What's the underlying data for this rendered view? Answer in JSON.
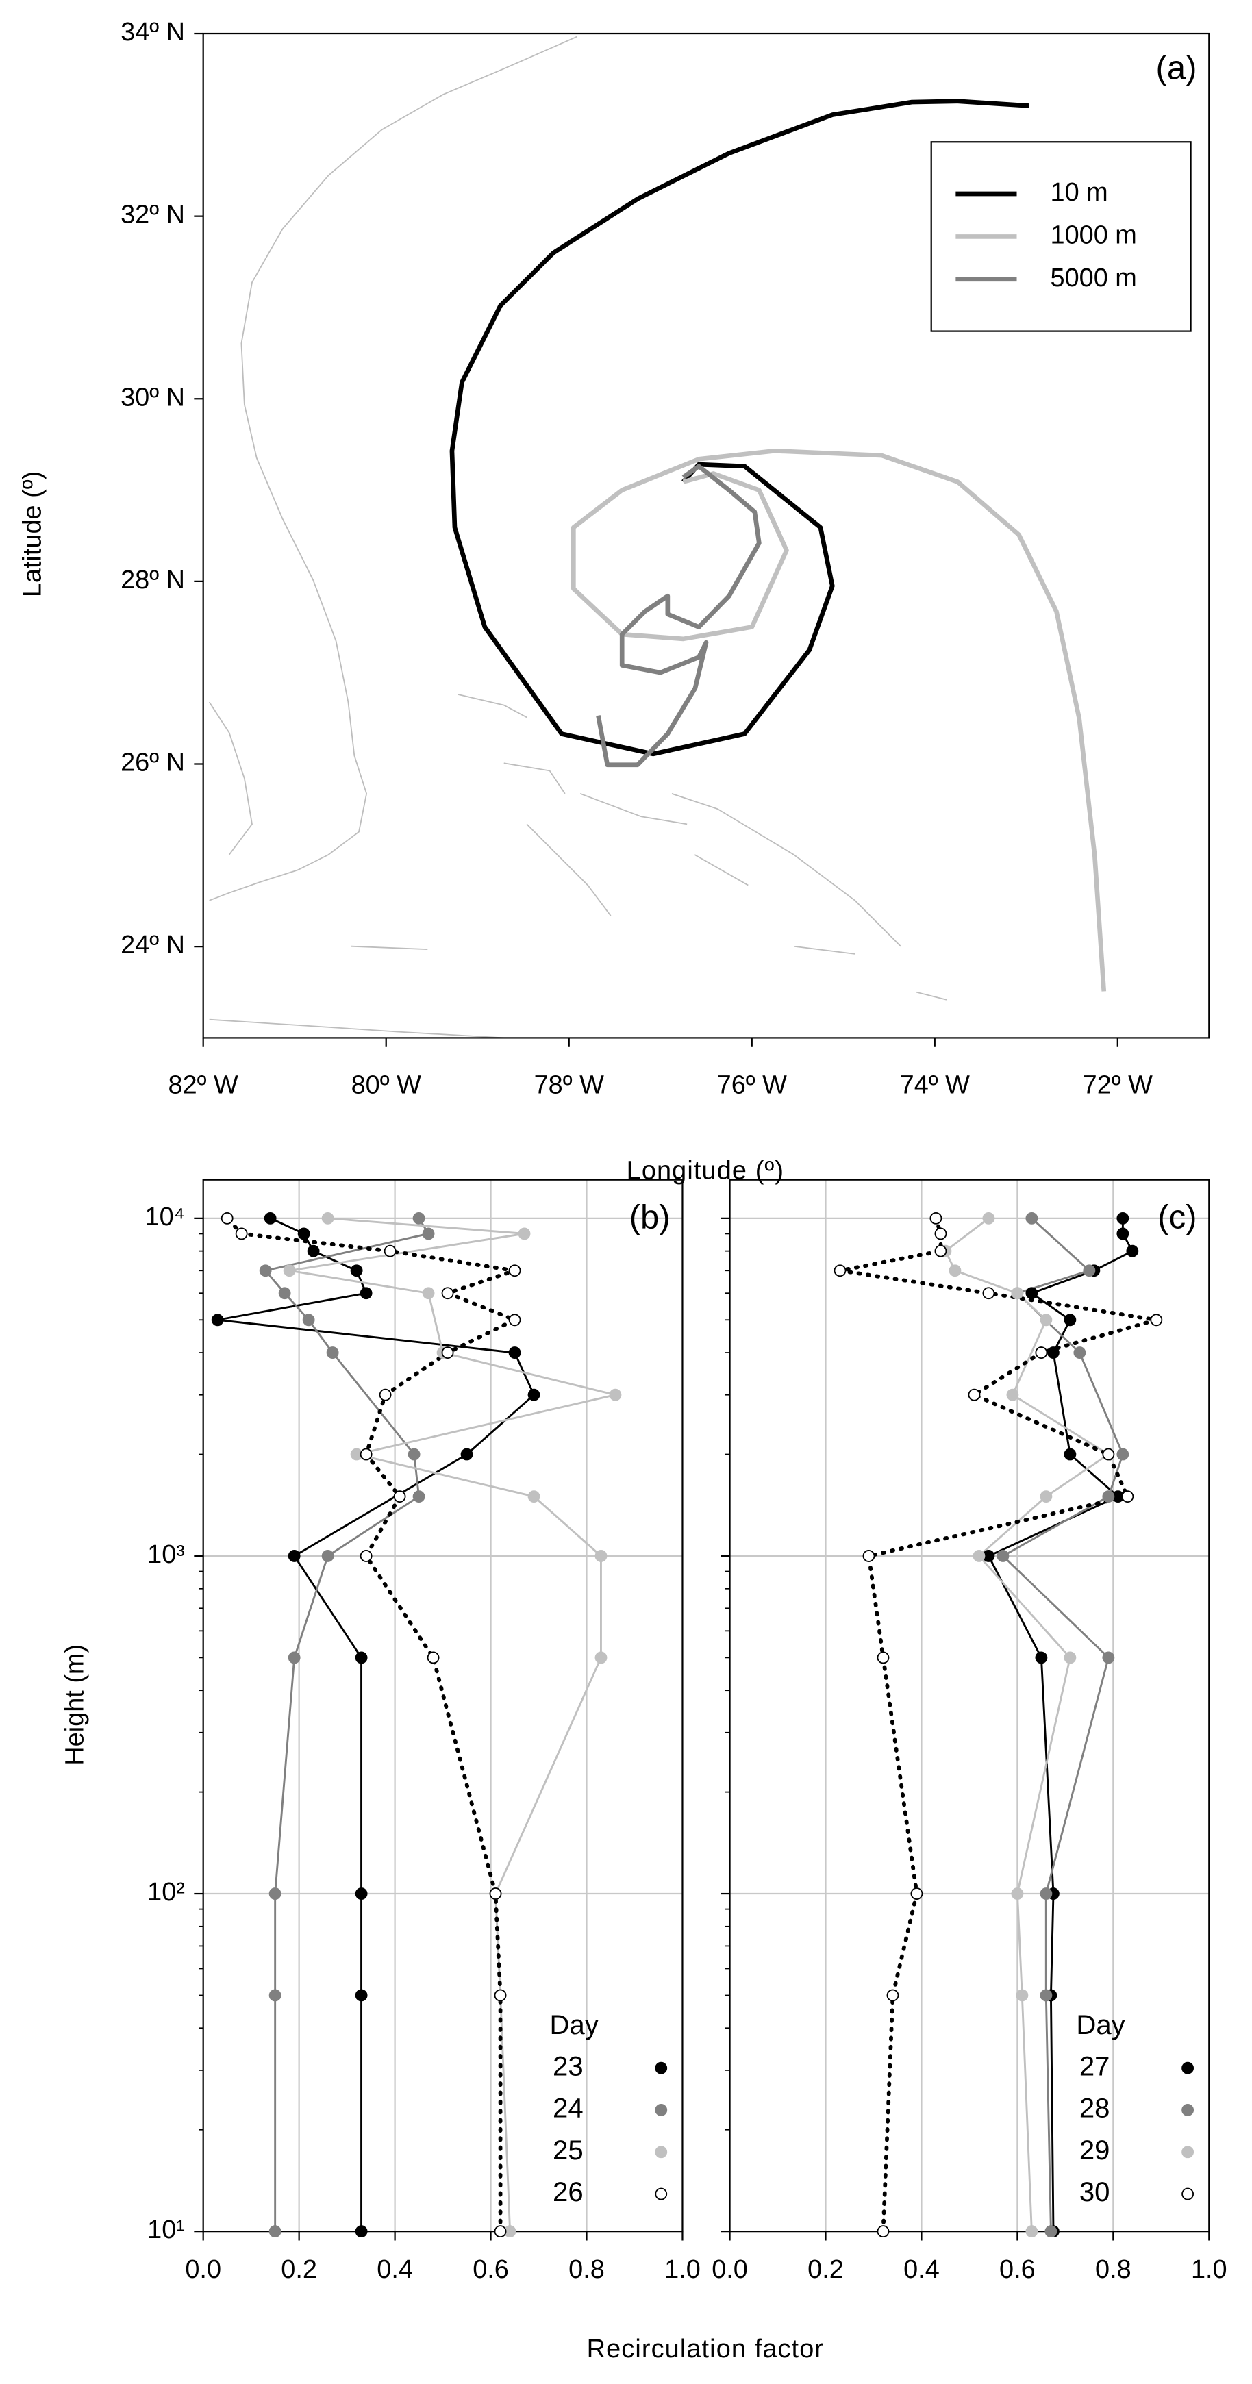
{
  "chart_data": [
    {
      "type": "line",
      "title": "(a)",
      "xlabel": "Longitude (º)",
      "ylabel": "Latitude (º)",
      "xlim": [
        -82,
        -71
      ],
      "ylim": [
        23,
        34
      ],
      "legend": "upper right",
      "xticks": [
        {
          "value": -82,
          "label": "82º W"
        },
        {
          "value": -80,
          "label": "80º W"
        },
        {
          "value": -78,
          "label": "78º W"
        },
        {
          "value": -76,
          "label": "76º W"
        },
        {
          "value": -74,
          "label": "74º W"
        },
        {
          "value": -72,
          "label": "72º W"
        }
      ],
      "yticks": [
        {
          "value": 24,
          "label": "24º N"
        },
        {
          "value": 26,
          "label": "26º N"
        },
        {
          "value": 28,
          "label": "28º N"
        },
        {
          "value": 30,
          "label": "30º N"
        },
        {
          "value": 32,
          "label": "32º N"
        },
        {
          "value": 34,
          "label": "34º N"
        }
      ],
      "series": [
        {
          "name": "10 m",
          "color": "#000000",
          "x": [
            -72.97,
            -73.75,
            -74.25,
            -75.12,
            -76.25,
            -77.25,
            -78.17,
            -78.75,
            -79.17,
            -79.28,
            -79.25,
            -78.92,
            -78.08,
            -77.08,
            -76.08,
            -75.37,
            -75.12,
            -75.25,
            -76.08,
            -76.58,
            -76.75
          ],
          "values": [
            33.21,
            33.26,
            33.25,
            33.11,
            32.69,
            32.19,
            31.6,
            31.02,
            30.18,
            29.43,
            28.59,
            27.5,
            26.33,
            26.11,
            26.33,
            27.25,
            27.95,
            28.59,
            29.26,
            29.28,
            29.09
          ]
        },
        {
          "name": "1000 m",
          "color": "#c0c0c0",
          "x": [
            -72.15,
            -72.25,
            -72.42,
            -72.67,
            -73.08,
            -73.75,
            -74.58,
            -75.75,
            -76.58,
            -77.42,
            -77.95,
            -77.95,
            -77.42,
            -76.75,
            -76.0,
            -75.62,
            -75.92,
            -76.42,
            -76.75
          ],
          "values": [
            23.51,
            24.99,
            26.5,
            27.67,
            28.51,
            29.09,
            29.38,
            29.43,
            29.34,
            29.0,
            28.59,
            27.92,
            27.42,
            27.37,
            27.5,
            28.34,
            29.0,
            29.18,
            29.09
          ]
        },
        {
          "name": "5000 m",
          "color": "#808080",
          "x": [
            -76.75,
            -76.58,
            -76.25,
            -75.97,
            -75.92,
            -76.25,
            -76.58,
            -76.92,
            -76.92,
            -77.17,
            -77.42,
            -77.42,
            -77.0,
            -76.58,
            -76.5,
            -76.62,
            -76.92,
            -77.25,
            -77.58,
            -77.68
          ],
          "values": [
            29.14,
            29.26,
            29.0,
            28.76,
            28.42,
            27.84,
            27.5,
            27.64,
            27.84,
            27.67,
            27.42,
            27.08,
            27.0,
            27.17,
            27.33,
            26.83,
            26.33,
            25.99,
            25.99,
            26.53
          ]
        }
      ]
    },
    {
      "type": "line",
      "title": "(b)",
      "xlabel": "Recirculation factor",
      "ylabel": "Height (m)",
      "legend_title": "Day",
      "legend": "lower right",
      "xlim": [
        0,
        1
      ],
      "ylim": [
        10,
        13000
      ],
      "ylog": true,
      "grid": true,
      "markers": true,
      "xticks": [
        {
          "value": 0,
          "label": "0.0"
        },
        0.2,
        0.4,
        0.6,
        0.8,
        {
          "value": 1,
          "label": "1.0"
        }
      ],
      "yticks": [
        {
          "value": 10,
          "label": "10¹"
        },
        {
          "value": 100,
          "label": "10²"
        },
        {
          "value": 1000,
          "label": "10³"
        },
        {
          "value": 10000,
          "label": "10⁴"
        }
      ],
      "series": [
        {
          "name": "23",
          "color": "#000000",
          "marker_fill": "#000000",
          "line_style": "solid",
          "x": [
            0.33,
            0.33,
            0.33,
            0.33,
            0.19,
            0.55,
            0.69,
            0.65,
            0.03,
            0.34,
            0.32,
            0.23,
            0.21,
            0.14
          ],
          "values": [
            10,
            50,
            100,
            500,
            1000,
            2000,
            3000,
            4000,
            5000,
            6000,
            7000,
            8000,
            9000,
            10000
          ]
        },
        {
          "name": "24",
          "color": "#808080",
          "marker_fill": "#808080",
          "line_style": "solid",
          "x": [
            0.15,
            0.15,
            0.15,
            0.19,
            0.26,
            0.45,
            0.44,
            0.27,
            0.22,
            0.17,
            0.13,
            0.47,
            0.45
          ],
          "values": [
            10,
            50,
            100,
            500,
            1000,
            1500,
            2000,
            4000,
            5000,
            6000,
            7000,
            9000,
            10000
          ]
        },
        {
          "name": "25",
          "color": "#c0c0c0",
          "marker_fill": "#c0c0c0",
          "line_style": "solid",
          "x": [
            0.64,
            0.62,
            0.61,
            0.83,
            0.83,
            0.69,
            0.32,
            0.86,
            0.5,
            0.47,
            0.18,
            0.67,
            0.26
          ],
          "values": [
            10,
            50,
            100,
            500,
            1000,
            1500,
            2000,
            3000,
            4000,
            6000,
            7000,
            9000,
            10000
          ]
        },
        {
          "name": "26",
          "color": "#000000",
          "marker_fill": "#ffffff",
          "line_style": "dotted",
          "x": [
            0.62,
            0.62,
            0.61,
            0.48,
            0.34,
            0.41,
            0.34,
            0.38,
            0.51,
            0.65,
            0.51,
            0.65,
            0.39,
            0.08,
            0.05
          ],
          "values": [
            10,
            50,
            100,
            500,
            1000,
            1500,
            2000,
            3000,
            4000,
            5000,
            6000,
            7000,
            8000,
            9000,
            10000
          ]
        }
      ]
    },
    {
      "type": "line",
      "title": "(c)",
      "legend_title": "Day",
      "legend": "lower right",
      "xlim": [
        0,
        1
      ],
      "ylim": [
        10,
        13000
      ],
      "ylog": true,
      "grid": true,
      "markers": true,
      "xticks": [
        {
          "value": 0,
          "label": "0.0"
        },
        0.2,
        0.4,
        0.6,
        0.8,
        {
          "value": 1,
          "label": "1.0"
        }
      ],
      "yticks": [
        10,
        100,
        1000,
        10000
      ],
      "series": [
        {
          "name": "27",
          "color": "#000000",
          "marker_fill": "#000000",
          "line_style": "solid",
          "x": [
            0.675,
            0.67,
            0.675,
            0.65,
            0.54,
            0.81,
            0.71,
            0.675,
            0.71,
            0.63,
            0.76,
            0.84,
            0.82,
            0.82
          ],
          "values": [
            10,
            50,
            100,
            500,
            1000,
            1500,
            2000,
            4000,
            5000,
            6000,
            7000,
            8000,
            9000,
            10000
          ]
        },
        {
          "name": "28",
          "color": "#808080",
          "marker_fill": "#808080",
          "line_style": "solid",
          "x": [
            0.67,
            0.66,
            0.66,
            0.79,
            0.57,
            0.79,
            0.82,
            0.73,
            0.6,
            0.75,
            0.63
          ],
          "values": [
            10,
            50,
            100,
            500,
            1000,
            1500,
            2000,
            4000,
            6000,
            7000,
            10000
          ]
        },
        {
          "name": "29",
          "color": "#c0c0c0",
          "marker_fill": "#c0c0c0",
          "line_style": "solid",
          "x": [
            0.63,
            0.61,
            0.6,
            0.71,
            0.52,
            0.66,
            0.79,
            0.59,
            0.66,
            0.6,
            0.47,
            0.45,
            0.54
          ],
          "values": [
            10,
            50,
            100,
            500,
            1000,
            1500,
            2000,
            3000,
            5000,
            6000,
            7000,
            8000,
            10000
          ]
        },
        {
          "name": "30",
          "color": "#000000",
          "marker_fill": "#ffffff",
          "line_style": "dotted",
          "x": [
            0.32,
            0.34,
            0.39,
            0.32,
            0.29,
            0.83,
            0.79,
            0.51,
            0.65,
            0.89,
            0.54,
            0.23,
            0.44,
            0.44,
            0.43
          ],
          "values": [
            10,
            50,
            100,
            500,
            1000,
            1500,
            2000,
            3000,
            4000,
            5000,
            6000,
            7000,
            8000,
            9000,
            10000
          ]
        }
      ]
    }
  ]
}
